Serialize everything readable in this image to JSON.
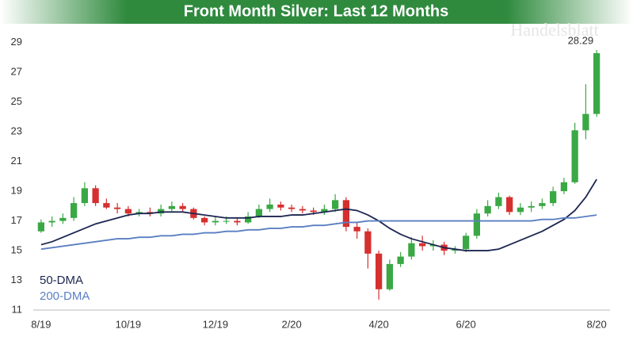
{
  "chart_data": {
    "type": "candlestick",
    "title": "Front Month Silver: Last 12 Months",
    "watermark": "Handelsblatt",
    "categories": [
      "8/19",
      null,
      null,
      null,
      null,
      null,
      null,
      null,
      "10/19",
      null,
      null,
      null,
      null,
      null,
      null,
      null,
      "12/19",
      null,
      null,
      null,
      null,
      null,
      null,
      "2/20",
      null,
      null,
      null,
      null,
      null,
      null,
      null,
      "4/20",
      null,
      null,
      null,
      null,
      null,
      null,
      null,
      "6/20",
      null,
      null,
      null,
      null,
      null,
      null,
      null,
      null,
      null,
      null,
      null,
      "8/20"
    ],
    "open": [
      16.3,
      16.9,
      17.0,
      17.2,
      18.2,
      19.2,
      18.2,
      17.9,
      17.8,
      17.5,
      17.6,
      17.5,
      17.8,
      18.0,
      17.8,
      17.2,
      16.9,
      17.0,
      17.0,
      16.9,
      17.3,
      17.8,
      18.1,
      17.9,
      17.8,
      17.7,
      17.6,
      17.8,
      18.4,
      16.6,
      16.3,
      14.8,
      12.4,
      14.1,
      14.6,
      15.5,
      15.3,
      15.4,
      15.0,
      15.1,
      16.0,
      17.5,
      18.0,
      18.6,
      17.6,
      17.9,
      18.0,
      18.2,
      19.0,
      19.6,
      23.1,
      24.2
    ],
    "high": [
      17.1,
      17.3,
      17.5,
      18.6,
      19.6,
      19.4,
      18.5,
      18.2,
      18.0,
      17.8,
      17.9,
      18.1,
      18.3,
      18.2,
      17.9,
      17.3,
      17.3,
      17.3,
      17.2,
      17.6,
      18.1,
      18.5,
      18.3,
      18.1,
      18.0,
      17.9,
      18.1,
      18.8,
      18.6,
      16.9,
      16.5,
      15.0,
      14.4,
      14.9,
      15.9,
      16.0,
      15.7,
      15.6,
      15.3,
      16.2,
      17.8,
      18.4,
      18.9,
      18.7,
      18.2,
      18.3,
      18.5,
      19.3,
      19.9,
      23.6,
      26.2,
      28.5
    ],
    "low": [
      16.2,
      16.6,
      16.8,
      17.0,
      18.0,
      18.0,
      17.8,
      17.5,
      17.3,
      17.3,
      17.3,
      17.3,
      17.6,
      17.6,
      17.1,
      16.7,
      16.7,
      16.8,
      16.7,
      16.8,
      17.2,
      17.6,
      17.7,
      17.6,
      17.5,
      17.4,
      17.4,
      17.6,
      16.3,
      15.8,
      13.8,
      11.7,
      12.3,
      13.9,
      14.4,
      15.0,
      15.0,
      14.7,
      14.8,
      14.9,
      15.8,
      17.3,
      17.8,
      17.4,
      17.4,
      17.6,
      17.8,
      18.0,
      18.8,
      19.5,
      22.5,
      24.0
    ],
    "close": [
      16.9,
      17.0,
      17.2,
      18.2,
      19.2,
      18.2,
      17.9,
      17.8,
      17.5,
      17.6,
      17.5,
      17.8,
      18.0,
      17.8,
      17.2,
      16.9,
      17.0,
      17.0,
      16.9,
      17.3,
      17.8,
      18.1,
      17.9,
      17.8,
      17.7,
      17.6,
      17.8,
      18.4,
      16.6,
      16.3,
      14.8,
      12.4,
      14.1,
      14.6,
      15.5,
      15.3,
      15.4,
      15.0,
      15.1,
      16.0,
      17.5,
      18.0,
      18.6,
      17.6,
      17.9,
      18.0,
      18.2,
      19.0,
      19.6,
      23.1,
      24.2,
      28.29
    ],
    "up_color": "#3aa845",
    "down_color": "#d62f2f",
    "series": [
      {
        "name": "50-DMA",
        "color": "#1c2650",
        "values": [
          15.4,
          15.6,
          15.9,
          16.2,
          16.5,
          16.8,
          17.0,
          17.2,
          17.4,
          17.5,
          17.5,
          17.6,
          17.6,
          17.6,
          17.5,
          17.4,
          17.3,
          17.2,
          17.2,
          17.2,
          17.3,
          17.3,
          17.3,
          17.4,
          17.4,
          17.5,
          17.6,
          17.7,
          17.8,
          17.7,
          17.4,
          17.0,
          16.5,
          16.1,
          15.8,
          15.6,
          15.4,
          15.2,
          15.1,
          15.0,
          15.0,
          15.0,
          15.1,
          15.4,
          15.7,
          16.0,
          16.3,
          16.7,
          17.1,
          17.7,
          18.6,
          19.8
        ]
      },
      {
        "name": "200-DMA",
        "color": "#5a7fc2",
        "values": [
          15.1,
          15.2,
          15.3,
          15.4,
          15.5,
          15.6,
          15.7,
          15.8,
          15.8,
          15.9,
          15.9,
          16.0,
          16.0,
          16.1,
          16.1,
          16.2,
          16.2,
          16.3,
          16.3,
          16.4,
          16.4,
          16.5,
          16.5,
          16.6,
          16.6,
          16.7,
          16.7,
          16.8,
          16.9,
          16.9,
          17.0,
          17.0,
          17.0,
          17.0,
          17.0,
          17.0,
          17.0,
          17.0,
          17.0,
          17.0,
          17.0,
          17.0,
          17.0,
          17.0,
          17.0,
          17.0,
          17.1,
          17.1,
          17.2,
          17.2,
          17.3,
          17.4
        ]
      }
    ],
    "legend": "lower left",
    "ylim": [
      11,
      30
    ],
    "yticks": [
      11,
      13,
      15,
      17,
      19,
      21,
      23,
      25,
      27,
      29
    ]
  }
}
